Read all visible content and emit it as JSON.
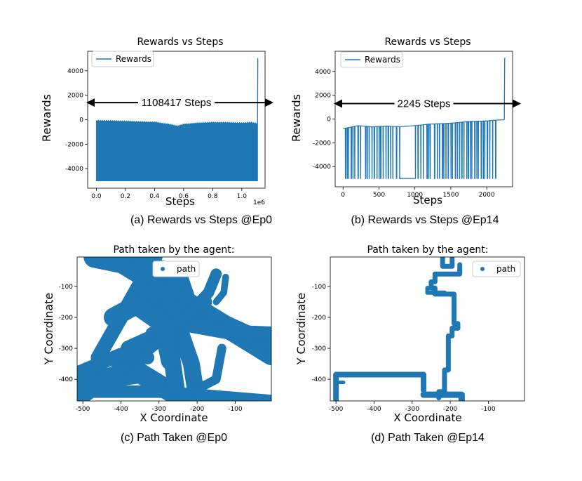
{
  "colors": {
    "series": "#1f77b4",
    "text": "#000000",
    "axis": "#000000"
  },
  "chart_data": [
    {
      "type": "line",
      "title": "Rewards vs Steps",
      "xlabel": "Steps",
      "ylabel": "Rewards",
      "caption": "(a) Rewards vs Steps @Ep0",
      "legend": {
        "entries": [
          "Rewards"
        ],
        "placement": "top-left"
      },
      "xlim": [
        -60000,
        1160000
      ],
      "ylim": [
        -5600,
        5600
      ],
      "x_exponent_label": "1e6",
      "x_ticks": [
        0,
        200000,
        400000,
        600000,
        800000,
        1000000
      ],
      "x_tick_labels": [
        "0.0",
        "0.2",
        "0.4",
        "0.6",
        "0.8",
        "1.0"
      ],
      "y_ticks": [
        -4000,
        -2000,
        0,
        2000,
        4000
      ],
      "y_tick_labels": [
        "-4000",
        "-2000",
        "0",
        "2000",
        "4000"
      ],
      "annotation": {
        "text": "1108417 Steps",
        "y": 1400,
        "arrow": "double"
      },
      "series": [
        {
          "name": "Rewards",
          "band": {
            "x_start": 0,
            "x_end": 1108417,
            "y_min": -5000
          },
          "upper_envelope": [
            [
              0,
              -100
            ],
            [
              100000,
              -120
            ],
            [
              200000,
              -150
            ],
            [
              300000,
              -200
            ],
            [
              400000,
              -230
            ],
            [
              500000,
              -400
            ],
            [
              560000,
              -550
            ],
            [
              600000,
              -400
            ],
            [
              700000,
              -300
            ],
            [
              800000,
              -250
            ],
            [
              900000,
              -260
            ],
            [
              1000000,
              -300
            ],
            [
              1060000,
              -250
            ],
            [
              1108417,
              -350
            ]
          ],
          "final_spike": [
            [
              1108417,
              -350
            ],
            [
              1110000,
              5000
            ],
            [
              1112000,
              5000
            ]
          ]
        }
      ]
    },
    {
      "type": "line",
      "title": "Rewards vs Steps",
      "xlabel": "Steps",
      "ylabel": "Rewards",
      "caption": "(b) Rewards vs Steps @Ep14",
      "legend": {
        "entries": [
          "Rewards"
        ],
        "placement": "top-left"
      },
      "xlim": [
        -110,
        2360
      ],
      "ylim": [
        -5700,
        5700
      ],
      "x_ticks": [
        0,
        500,
        1000,
        1500,
        2000
      ],
      "x_tick_labels": [
        "0",
        "500",
        "1000",
        "1500",
        "2000"
      ],
      "y_ticks": [
        -4000,
        -2000,
        0,
        2000,
        4000
      ],
      "y_tick_labels": [
        "-4000",
        "-2000",
        "0",
        "2000",
        "4000"
      ],
      "annotation": {
        "text": "2245 Steps",
        "y": 1300,
        "arrow": "double"
      },
      "series": [
        {
          "name": "Rewards",
          "baseline": [
            [
              0,
              -800
            ],
            [
              100,
              -700
            ],
            [
              200,
              -560
            ],
            [
              300,
              -600
            ],
            [
              400,
              -650
            ],
            [
              500,
              -620
            ],
            [
              600,
              -600
            ],
            [
              700,
              -620
            ],
            [
              800,
              -650
            ],
            [
              900,
              -600
            ],
            [
              1000,
              -560
            ],
            [
              1100,
              -500
            ],
            [
              1200,
              -420
            ],
            [
              1300,
              -400
            ],
            [
              1400,
              -380
            ],
            [
              1500,
              -350
            ],
            [
              1600,
              -300
            ],
            [
              1700,
              -230
            ],
            [
              1800,
              -200
            ],
            [
              1900,
              -180
            ],
            [
              2000,
              -160
            ],
            [
              2100,
              -100
            ],
            [
              2180,
              -80
            ],
            [
              2245,
              -60
            ]
          ],
          "drops_to": -5000,
          "drop_steps": [
            30,
            55,
            75,
            110,
            135,
            160,
            205,
            240,
            310,
            330,
            360,
            400,
            430,
            470,
            500,
            520,
            555,
            595,
            625,
            660,
            690,
            740,
            785,
            1005,
            1040,
            1080,
            1115,
            1165,
            1190,
            1210,
            1270,
            1310,
            1340,
            1380,
            1400,
            1430,
            1460,
            1500,
            1520,
            1560,
            1590,
            1620,
            1650,
            1680,
            1720,
            1740,
            1770,
            1790,
            1830,
            1860,
            1880,
            1920,
            1950,
            1970,
            2005,
            2040,
            2080,
            2120
          ],
          "flat_low": [
            [
              780,
              1000
            ]
          ],
          "final_spike": [
            [
              2245,
              -60
            ],
            [
              2250,
              5100
            ],
            [
              2260,
              5100
            ]
          ]
        }
      ]
    },
    {
      "type": "scatter",
      "title": "Path taken by the agent:",
      "xlabel": "X Coordinate",
      "ylabel": "Y Coordinate",
      "caption": "(c) Path Taken @Ep0",
      "legend": {
        "entries": [
          "path"
        ],
        "placement": "top-center"
      },
      "xlim": [
        -515,
        -5
      ],
      "ylim": [
        -470,
        -5
      ],
      "x_ticks": [
        -500,
        -400,
        -300,
        -200,
        -100
      ],
      "x_tick_labels": [
        "-500",
        "-400",
        "-300",
        "-200",
        "-100"
      ],
      "y_ticks": [
        -100,
        -200,
        -300,
        -400
      ],
      "y_tick_labels": [
        "-100",
        "-200",
        "-300",
        "-400"
      ],
      "series": [
        {
          "name": "path",
          "segments": [
            {
              "points": [
                [
                  -470,
                  -5
                ],
                [
                  -255,
                  -60
                ],
                [
                  -230,
                  -150
                ],
                [
                  -5,
                  -320
                ]
              ],
              "width": 38
            },
            {
              "points": [
                [
                  -430,
                  -5
                ],
                [
                  -175,
                  -195
                ],
                [
                  -5,
                  -290
                ]
              ],
              "width": 32
            },
            {
              "points": [
                [
                  -355,
                  -5
                ],
                [
                  -260,
                  -190
                ],
                [
                  -215,
                  -350
                ],
                [
                  -200,
                  -470
                ]
              ],
              "width": 30
            },
            {
              "points": [
                [
                  -310,
                  -5
                ],
                [
                  -400,
                  -200
                ],
                [
                  -460,
                  -330
                ]
              ],
              "width": 26
            },
            {
              "points": [
                [
                  -515,
                  -410
                ],
                [
                  -350,
                  -380
                ],
                [
                  -230,
                  -470
                ]
              ],
              "width": 36
            },
            {
              "points": [
                [
                  -515,
                  -440
                ],
                [
                  -300,
                  -440
                ],
                [
                  -5,
                  -470
                ]
              ],
              "width": 22
            },
            {
              "points": [
                [
                  -380,
                  -300
                ],
                [
                  -235,
                  -220
                ],
                [
                  -100,
                  -250
                ],
                [
                  -5,
                  -255
                ]
              ],
              "width": 28
            },
            {
              "points": [
                [
                  -515,
                  -470
                ],
                [
                  -330,
                  -300
                ],
                [
                  -180,
                  -150
                ]
              ],
              "width": 26
            },
            {
              "points": [
                [
                  -330,
                  -120
                ],
                [
                  -270,
                  -300
                ],
                [
                  -250,
                  -470
                ]
              ],
              "width": 30
            },
            {
              "points": [
                [
                  -150,
                  -60
                ],
                [
                  -170,
                  -120
                ],
                [
                  -230,
                  -200
                ],
                [
                  -320,
                  -250
                ]
              ],
              "width": 20
            },
            {
              "points": [
                [
                  -300,
                  -40
                ],
                [
                  -270,
                  -50
                ],
                [
                  -250,
                  -30
                ]
              ],
              "width": 14
            },
            {
              "points": [
                [
                  -420,
                  -200
                ],
                [
                  -360,
                  -160
                ],
                [
                  -290,
                  -220
                ],
                [
                  -270,
                  -340
                ]
              ],
              "width": 34
            },
            {
              "points": [
                [
                  -515,
                  -380
                ],
                [
                  -400,
                  -320
                ],
                [
                  -330,
                  -330
                ]
              ],
              "width": 24
            },
            {
              "points": [
                [
                  -125,
                  -70
                ],
                [
                  -130,
                  -120
                ],
                [
                  -150,
                  -150
                ]
              ],
              "width": 12
            },
            {
              "points": [
                [
                  -260,
                  -470
                ],
                [
                  -150,
                  -400
                ],
                [
                  -135,
                  -300
                ]
              ],
              "width": 16
            }
          ]
        }
      ]
    },
    {
      "type": "scatter",
      "title": "Path taken by the agent:",
      "xlabel": "X Coordinate",
      "ylabel": "Y Coordinate",
      "caption": "(d) Path Taken @Ep14",
      "legend": {
        "entries": [
          "path"
        ],
        "placement": "top-right"
      },
      "xlim": [
        -515,
        -5
      ],
      "ylim": [
        -470,
        -5
      ],
      "x_ticks": [
        -500,
        -400,
        -300,
        -200,
        -100
      ],
      "x_tick_labels": [
        "-500",
        "-400",
        "-300",
        "-200",
        "-100"
      ],
      "y_ticks": [
        -100,
        -200,
        -300,
        -400
      ],
      "y_tick_labels": [
        "-100",
        "-200",
        "-300",
        "-400"
      ],
      "series": [
        {
          "name": "path",
          "segments": [
            {
              "points": [
                [
                  -500,
                  -470
                ],
                [
                  -500,
                  -385
                ],
                [
                  -270,
                  -385
                ],
                [
                  -270,
                  -435
                ]
              ],
              "width": 8
            },
            {
              "points": [
                [
                  -500,
                  -410
                ],
                [
                  -480,
                  -410
                ]
              ],
              "width": 5
            },
            {
              "points": [
                [
                  -195,
                  -10
                ],
                [
                  -195,
                  -35
                ],
                [
                  -220,
                  -35
                ],
                [
                  -220,
                  -5
                ]
              ],
              "width": 7
            },
            {
              "points": [
                [
                  -175,
                  -30
                ],
                [
                  -175,
                  -60
                ],
                [
                  -240,
                  -60
                ],
                [
                  -240,
                  -85
                ],
                [
                  -250,
                  -85
                ],
                [
                  -250,
                  -105
                ],
                [
                  -240,
                  -105
                ],
                [
                  -240,
                  -125
                ],
                [
                  -190,
                  -125
                ],
                [
                  -190,
                  -220
                ],
                [
                  -180,
                  -220
                ],
                [
                  -180,
                  -235
                ]
              ],
              "width": 7
            },
            {
              "points": [
                [
                  -180,
                  -235
                ],
                [
                  -195,
                  -235
                ],
                [
                  -195,
                  -260
                ],
                [
                  -205,
                  -260
                ],
                [
                  -205,
                  -370
                ],
                [
                  -215,
                  -370
                ],
                [
                  -215,
                  -440
                ],
                [
                  -230,
                  -440
                ],
                [
                  -230,
                  -460
                ]
              ],
              "width": 7
            },
            {
              "points": [
                [
                  -270,
                  -450
                ],
                [
                  -170,
                  -450
                ],
                [
                  -170,
                  -470
                ]
              ],
              "width": 9
            },
            {
              "points": [
                [
                  -250,
                  -105
                ],
                [
                  -260,
                  -105
                ],
                [
                  -260,
                  -120
                ],
                [
                  -215,
                  -120
                ]
              ],
              "width": 6
            }
          ]
        }
      ]
    }
  ]
}
